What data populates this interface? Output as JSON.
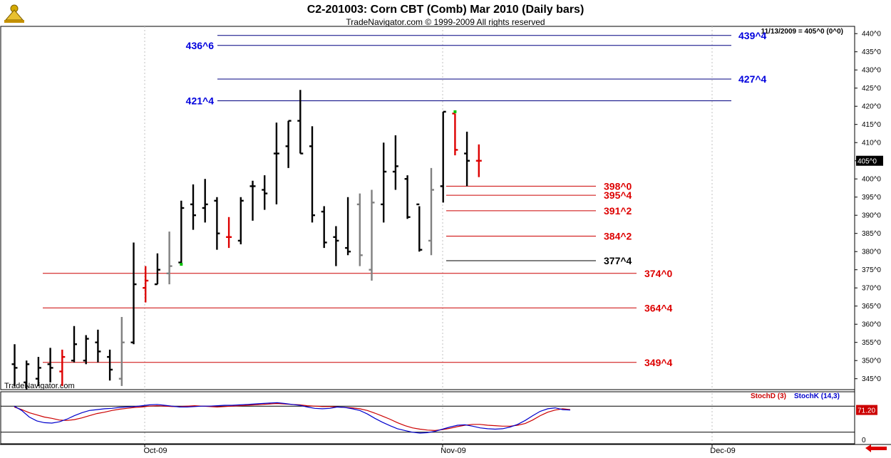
{
  "header": {
    "title": "C2-201003:  Corn CBT (Comb) Mar 2010  (Daily bars)",
    "subtitle": "TradeNavigator.com © 1999-2009 All rights reserved",
    "last_info": "11/13/2009 = 405^0 (0^0)",
    "watermark": "TradeNavigator.com",
    "logo": "trade-navigator-logo"
  },
  "colors": {
    "background": "#ffffff",
    "grid": "#c0c0c0",
    "bar_up": "#000000",
    "bar_down": "#000000",
    "bar_red": "#dd0000",
    "bar_gray": "#808080",
    "level_blue": "#000080",
    "level_red": "#cc0000",
    "label_blue": "#0000dd",
    "label_red": "#dd0000",
    "stoch_d": "#cc0000",
    "stoch_k": "#0000cc"
  },
  "chart_data": [
    {
      "type": "ohlc",
      "title": "C2-201003:  Corn CBT (Comb) Mar 2010  (Daily bars)",
      "ylim": [
        342,
        442
      ],
      "y_ticks": [
        "345^0",
        "350^0",
        "355^0",
        "360^0",
        "365^0",
        "370^0",
        "375^0",
        "380^0",
        "385^0",
        "390^0",
        "395^0",
        "400^0",
        "405^0",
        "410^0",
        "415^0",
        "420^0",
        "425^0",
        "430^0",
        "435^0",
        "440^0"
      ],
      "y_tick_values": [
        345,
        350,
        355,
        360,
        365,
        370,
        375,
        380,
        385,
        390,
        395,
        400,
        405,
        410,
        415,
        420,
        425,
        430,
        435,
        440
      ],
      "last_price_label": "405^0",
      "last_price": 405,
      "x_labels": [
        "Oct-09",
        "Nov-09",
        "Dec-09"
      ],
      "bars": [
        {
          "o": 349,
          "h": 354.5,
          "l": 343,
          "c": 348,
          "col": "black"
        },
        {
          "o": 344,
          "h": 350,
          "l": 342,
          "c": 349,
          "col": "black"
        },
        {
          "o": 345,
          "h": 351,
          "l": 343,
          "c": 348,
          "col": "black"
        },
        {
          "o": 349,
          "h": 353.5,
          "l": 344,
          "c": 348,
          "col": "black"
        },
        {
          "o": 347,
          "h": 353,
          "l": 343,
          "c": 351,
          "col": "red"
        },
        {
          "o": 350,
          "h": 359.5,
          "l": 349.5,
          "c": 354.5,
          "col": "black"
        },
        {
          "o": 350,
          "h": 357,
          "l": 349,
          "c": 356,
          "col": "black"
        },
        {
          "o": 355,
          "h": 358.5,
          "l": 349.5,
          "c": 352.5,
          "col": "black"
        },
        {
          "o": 351,
          "h": 353,
          "l": 344.5,
          "c": 347.5,
          "col": "black"
        },
        {
          "o": 345,
          "h": 362,
          "l": 343,
          "c": 355,
          "col": "gray"
        },
        {
          "o": 355,
          "h": 382.5,
          "l": 354.5,
          "c": 371,
          "col": "black"
        },
        {
          "o": 370,
          "h": 376,
          "l": 366,
          "c": 372,
          "col": "red"
        },
        {
          "o": 371,
          "h": 379.5,
          "l": 371,
          "c": 375,
          "col": "black"
        },
        {
          "o": 374,
          "h": 385.5,
          "l": 371,
          "c": 376,
          "col": "gray"
        },
        {
          "o": 377,
          "h": 394,
          "l": 376.5,
          "c": 392,
          "col": "black"
        },
        {
          "o": 393,
          "h": 398.5,
          "l": 386,
          "c": 390,
          "col": "black"
        },
        {
          "o": 392,
          "h": 400,
          "l": 388,
          "c": 393,
          "col": "black"
        },
        {
          "o": 394,
          "h": 395,
          "l": 380.5,
          "c": 385,
          "col": "black"
        },
        {
          "o": 384,
          "h": 389.5,
          "l": 381,
          "c": 384,
          "col": "red"
        },
        {
          "o": 383,
          "h": 395,
          "l": 382,
          "c": 394,
          "col": "black"
        },
        {
          "o": 398,
          "h": 399.5,
          "l": 388.5,
          "c": 398,
          "col": "black"
        },
        {
          "o": 397,
          "h": 401,
          "l": 391.5,
          "c": 396,
          "col": "black"
        },
        {
          "o": 407,
          "h": 415.5,
          "l": 393,
          "c": 407,
          "col": "black"
        },
        {
          "o": 409,
          "h": 416,
          "l": 403,
          "c": 416,
          "col": "black"
        },
        {
          "o": 416,
          "h": 424.5,
          "l": 407,
          "c": 407,
          "col": "black"
        },
        {
          "o": 409,
          "h": 414.5,
          "l": 388,
          "c": 390,
          "col": "black"
        },
        {
          "o": 391,
          "h": 392.5,
          "l": 381,
          "c": 382.5,
          "col": "black"
        },
        {
          "o": 384,
          "h": 387,
          "l": 376,
          "c": 383,
          "col": "black"
        },
        {
          "o": 381,
          "h": 395,
          "l": 379,
          "c": 380,
          "col": "black"
        },
        {
          "o": 393,
          "h": 396,
          "l": 376,
          "c": 379,
          "col": "gray"
        },
        {
          "o": 375,
          "h": 397,
          "l": 372,
          "c": 393.5,
          "col": "gray"
        },
        {
          "o": 393,
          "h": 410,
          "l": 388,
          "c": 402,
          "col": "black"
        },
        {
          "o": 402,
          "h": 412,
          "l": 397,
          "c": 403.5,
          "col": "black"
        },
        {
          "o": 400,
          "h": 401,
          "l": 389,
          "c": 389.5,
          "col": "black"
        },
        {
          "o": 393,
          "h": 392.5,
          "l": 380,
          "c": 380.5,
          "col": "black"
        },
        {
          "o": 383,
          "h": 403,
          "l": 379,
          "c": 397,
          "col": "gray"
        },
        {
          "o": 398,
          "h": 418.5,
          "l": 393.5,
          "c": 418.5,
          "col": "black"
        },
        {
          "o": 418,
          "h": 418,
          "l": 406.5,
          "c": 408,
          "col": "red"
        },
        {
          "o": 407,
          "h": 413,
          "l": 398,
          "c": 405,
          "col": "black"
        },
        {
          "o": 405,
          "h": 409.5,
          "l": 400.5,
          "c": 405,
          "col": "red"
        }
      ],
      "green_ticks": [
        {
          "bar": 14,
          "value": 376.5
        },
        {
          "bar": 37,
          "value": 418.5
        }
      ],
      "levels": [
        {
          "label": "439^4",
          "value": 439.5,
          "color": "blue",
          "label_side": "right"
        },
        {
          "label": "436^6",
          "value": 436.75,
          "color": "blue",
          "label_side": "left"
        },
        {
          "label": "427^4",
          "value": 427.5,
          "color": "blue",
          "label_side": "right"
        },
        {
          "label": "421^4",
          "value": 421.5,
          "color": "blue",
          "label_side": "left"
        },
        {
          "label": "398^0",
          "value": 398,
          "color": "red",
          "label_side": "right"
        },
        {
          "label": "395^4",
          "value": 395.5,
          "color": "red",
          "label_side": "right"
        },
        {
          "label": "391^2",
          "value": 391.25,
          "color": "red",
          "label_side": "right"
        },
        {
          "label": "384^2",
          "value": 384.25,
          "color": "red",
          "label_side": "right"
        },
        {
          "label": "377^4",
          "value": 377.5,
          "color": "black",
          "label_side": "right"
        },
        {
          "label": "374^0",
          "value": 374,
          "color": "red",
          "label_side": "right"
        },
        {
          "label": "364^4",
          "value": 364.5,
          "color": "red",
          "label_side": "right"
        },
        {
          "label": "349^4",
          "value": 349.5,
          "color": "red",
          "label_side": "right"
        }
      ]
    },
    {
      "type": "line",
      "title": "",
      "ylim": [
        0,
        100
      ],
      "y_ticks": [
        "0"
      ],
      "last_value_label": "71.20",
      "legend": [
        "StochD (3)",
        "StochK (14,3)"
      ],
      "series": [
        {
          "name": "StochD (3)",
          "color": "#cc0000",
          "values": [
            78,
            72,
            65,
            60,
            55,
            52,
            48,
            47,
            49,
            53,
            58,
            63,
            66,
            70,
            73,
            75,
            77,
            78,
            80,
            81,
            80,
            79,
            79,
            80,
            81,
            80,
            79,
            78,
            79,
            80,
            81,
            82,
            83,
            84,
            85,
            86,
            85,
            84,
            83,
            81,
            80,
            79,
            79,
            78,
            77,
            76,
            74,
            70,
            64,
            57,
            50,
            42,
            35,
            30,
            27,
            25,
            24,
            26,
            29,
            33,
            36,
            38,
            38,
            36,
            35,
            34,
            34,
            36,
            40,
            48,
            58,
            66,
            71,
            74,
            72
          ]
        },
        {
          "name": "StochK (14,3)",
          "color": "#0000cc",
          "values": [
            80,
            70,
            55,
            46,
            42,
            41,
            44,
            50,
            58,
            65,
            70,
            72,
            74,
            75,
            77,
            78,
            79,
            81,
            83,
            84,
            82,
            80,
            78,
            78,
            79,
            80,
            80,
            81,
            82,
            82,
            83,
            84,
            85,
            86,
            87,
            88,
            86,
            84,
            82,
            78,
            75,
            74,
            75,
            78,
            77,
            74,
            70,
            62,
            52,
            43,
            35,
            28,
            24,
            20,
            18,
            19,
            22,
            27,
            32,
            36,
            37,
            34,
            30,
            28,
            27,
            28,
            32,
            38,
            47,
            58,
            68,
            74,
            76,
            72,
            71
          ]
        }
      ]
    }
  ]
}
